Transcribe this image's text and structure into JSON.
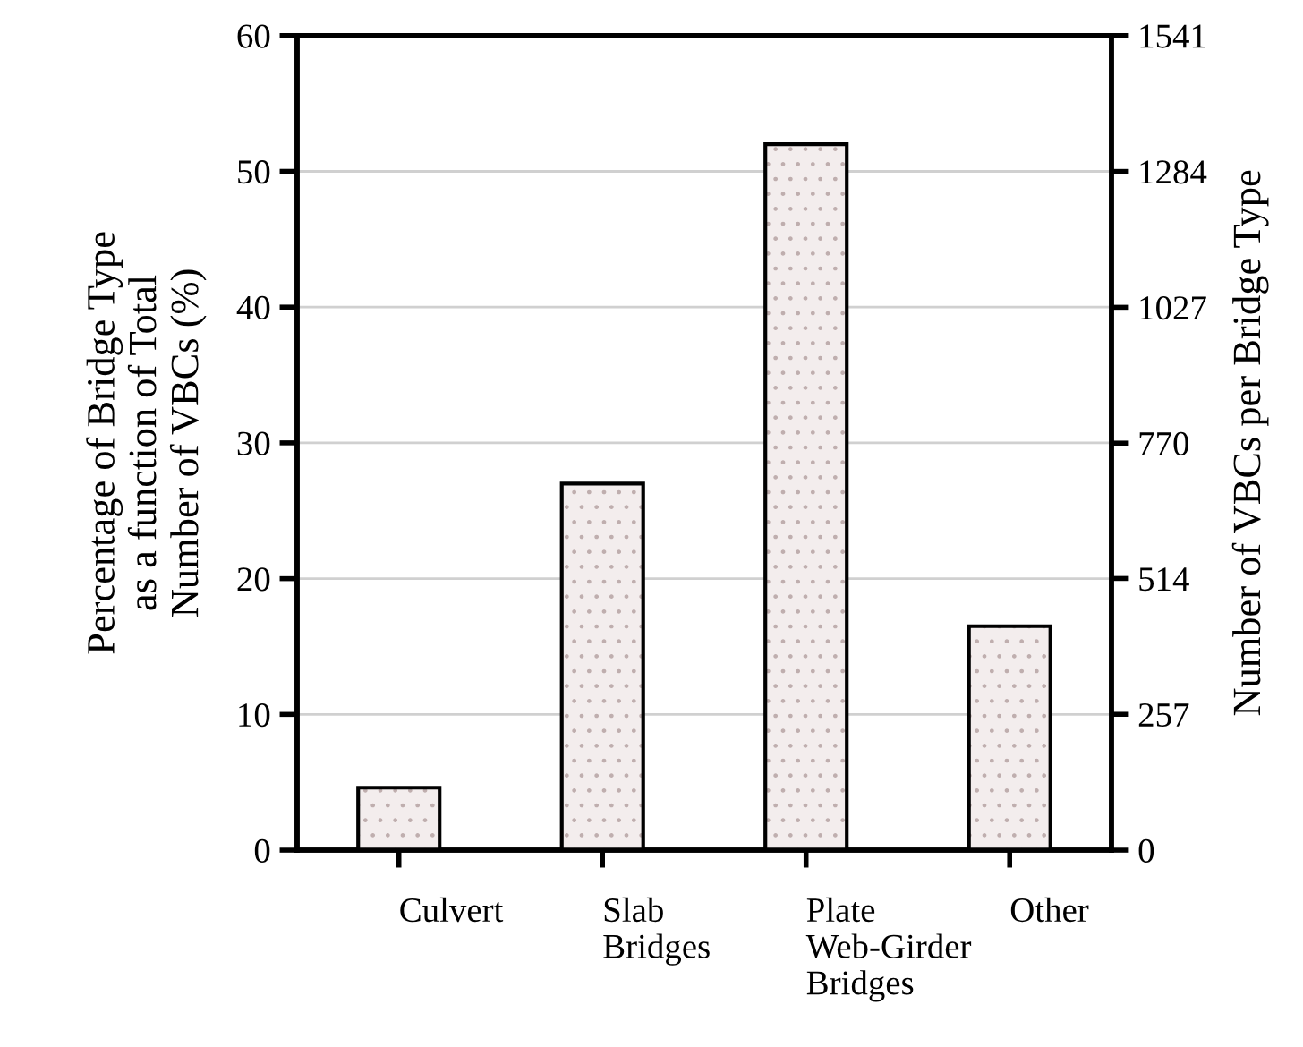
{
  "chart_data": {
    "type": "bar",
    "ylabel": "Percentage of Bridge Type\nas a function of Total\nNumber of VBCs (%)",
    "y2label": "Number of VBCs per Bridge Type",
    "categories": [
      "Culvert",
      "Slab\nBridges",
      "Plate\nWeb-Girder\nBridges",
      "Other"
    ],
    "values": [
      4.6,
      27.0,
      52.0,
      16.5
    ],
    "color": "#f3eded",
    "ylim": [
      0,
      60
    ],
    "yticks": [
      0,
      10,
      20,
      30,
      40,
      50,
      60
    ],
    "y2lim": [
      0,
      1541
    ],
    "y2ticks": [
      0,
      257,
      514,
      770,
      1027,
      1284,
      1541
    ],
    "grid": "y"
  }
}
